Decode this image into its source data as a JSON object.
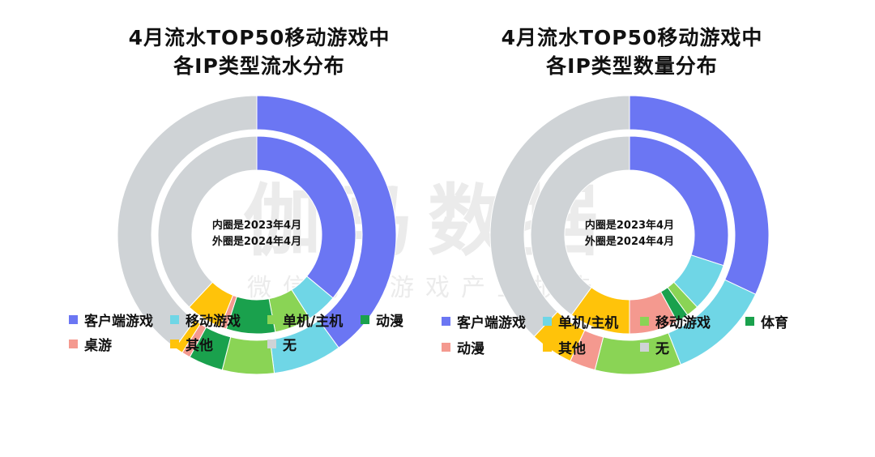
{
  "watermark": {
    "main": "伽马数据",
    "sub": "微信号：游戏产业报告"
  },
  "chart_data": [
    {
      "type": "donut",
      "title_line1": "4月流水TOP50移动游戏中",
      "title_line2": "各IP类型流水分布",
      "center_text": [
        "内圈是2023年4月",
        "外圈是2024年4月"
      ],
      "categories": [
        "客户端游戏",
        "移动游戏",
        "单机/主机",
        "动漫",
        "桌游",
        "其他",
        "无"
      ],
      "colors": [
        "#6b76f3",
        "#6fd6e6",
        "#8ad455",
        "#1aa14d",
        "#f4998f",
        "#ffc30a",
        "#cfd3d6"
      ],
      "series": [
        {
          "name": "外圈是2024年4月",
          "values": [
            40,
            8,
            6,
            4,
            1,
            1,
            40
          ]
        },
        {
          "name": "内圈是2023年4月",
          "values": [
            36,
            5,
            6,
            8,
            1,
            6,
            38
          ]
        }
      ]
    },
    {
      "type": "donut",
      "title_line1": "4月流水TOP50移动游戏中",
      "title_line2": "各IP类型数量分布",
      "center_text": [
        "内圈是2023年4月",
        "外圈是2024年4月"
      ],
      "categories": [
        "客户端游戏",
        "单机/主机",
        "移动游戏",
        "体育",
        "动漫",
        "其他",
        "无"
      ],
      "colors": [
        "#6b76f3",
        "#6fd6e6",
        "#8ad455",
        "#1aa14d",
        "#f4998f",
        "#ffc30a",
        "#cfd3d6"
      ],
      "series": [
        {
          "name": "外圈是2024年4月",
          "values": [
            32,
            12,
            10,
            0,
            3,
            5,
            38
          ]
        },
        {
          "name": "内圈是2023年4月",
          "values": [
            30,
            8,
            2,
            2,
            8,
            10,
            40
          ]
        }
      ]
    }
  ]
}
